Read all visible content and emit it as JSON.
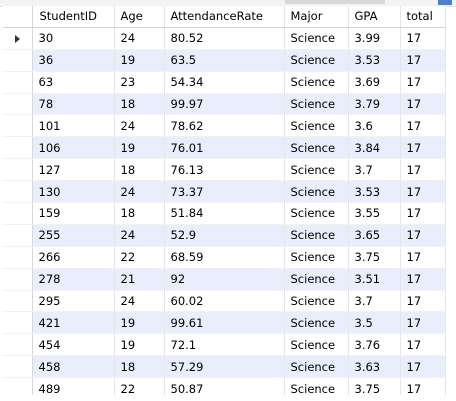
{
  "columns": [
    "StudentID",
    "Age",
    "AttendanceRate",
    "Major",
    "GPA",
    "total"
  ],
  "current_row_index": 0,
  "rows": [
    [
      "30",
      "24",
      "80.52",
      "Science",
      "3.99",
      "17"
    ],
    [
      "36",
      "19",
      "63.5",
      "Science",
      "3.53",
      "17"
    ],
    [
      "63",
      "23",
      "54.34",
      "Science",
      "3.69",
      "17"
    ],
    [
      "78",
      "18",
      "99.97",
      "Science",
      "3.79",
      "17"
    ],
    [
      "101",
      "24",
      "78.62",
      "Science",
      "3.6",
      "17"
    ],
    [
      "106",
      "19",
      "76.01",
      "Science",
      "3.84",
      "17"
    ],
    [
      "127",
      "18",
      "76.13",
      "Science",
      "3.7",
      "17"
    ],
    [
      "130",
      "24",
      "73.37",
      "Science",
      "3.53",
      "17"
    ],
    [
      "159",
      "18",
      "51.84",
      "Science",
      "3.55",
      "17"
    ],
    [
      "255",
      "24",
      "52.9",
      "Science",
      "3.65",
      "17"
    ],
    [
      "266",
      "22",
      "68.59",
      "Science",
      "3.75",
      "17"
    ],
    [
      "278",
      "21",
      "92",
      "Science",
      "3.51",
      "17"
    ],
    [
      "295",
      "24",
      "60.02",
      "Science",
      "3.7",
      "17"
    ],
    [
      "421",
      "19",
      "99.61",
      "Science",
      "3.5",
      "17"
    ],
    [
      "454",
      "19",
      "72.1",
      "Science",
      "3.76",
      "17"
    ],
    [
      "458",
      "18",
      "57.29",
      "Science",
      "3.63",
      "17"
    ],
    [
      "489",
      "22",
      "50.87",
      "Science",
      "3.75",
      "17"
    ]
  ],
  "colors": {
    "row_alt": "#e9eefc",
    "grid_line": "#e6e6e6",
    "header_border": "#d4d4d4"
  },
  "icons": {
    "current_row_marker": "row-pointer-icon"
  }
}
